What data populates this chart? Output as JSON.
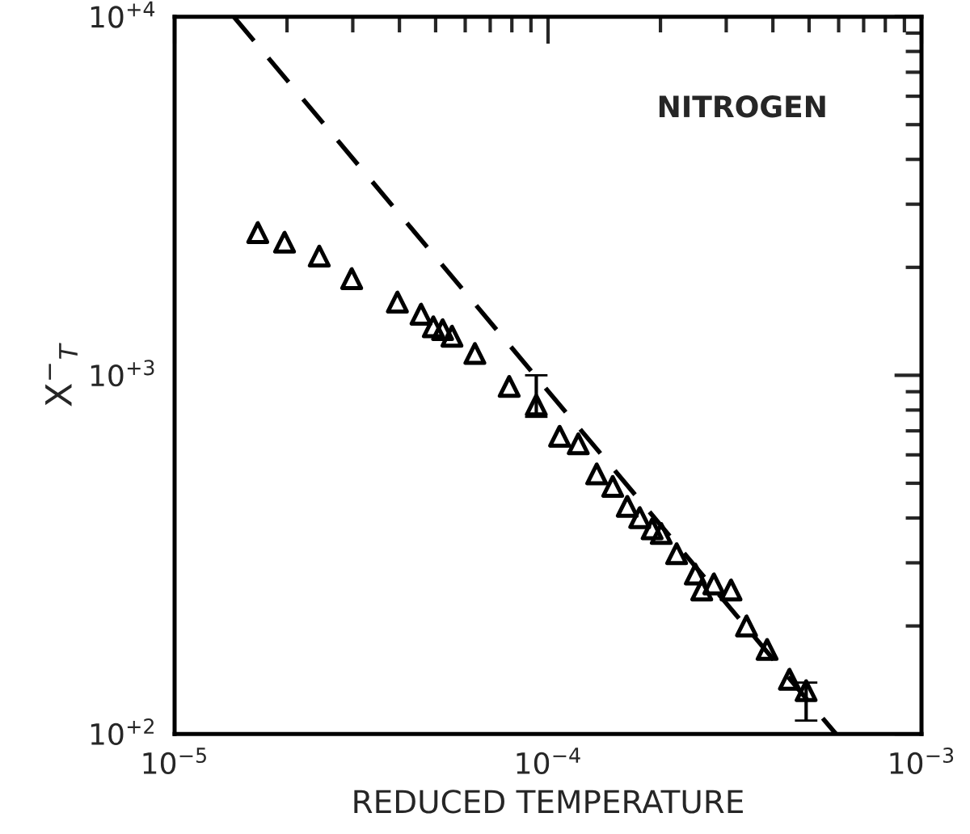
{
  "chart_data": {
    "type": "scatter",
    "xlabel": "REDUCED TEMPERATURE",
    "ylabel": "X$^{−}$$_{T}$",
    "log": "xy",
    "grid": false,
    "xlim": [
      1e-05,
      0.001
    ],
    "ylim": [
      100,
      10000
    ],
    "xticks": [
      {
        "value": 1e-05,
        "label": "10$^{−5}$"
      },
      {
        "value": 0.0001,
        "label": "10$^{−4}$"
      },
      {
        "value": 0.001,
        "label": "10$^{−3}$"
      }
    ],
    "yticks": [
      {
        "value": 100,
        "label": "10$^{+2}$"
      },
      {
        "value": 1000,
        "label": "10$^{+3}$"
      },
      {
        "value": 10000,
        "label": "10$^{+4}$"
      }
    ],
    "annotations": [
      "NITROGEN"
    ],
    "series": [
      {
        "color": "#000000",
        "marker": "triangle",
        "x": [
          1.67e-05,
          1.97e-05,
          2.44e-05,
          2.98e-05,
          3.95e-05,
          4.57e-05,
          4.93e-05,
          5.22e-05,
          5.53e-05,
          6.37e-05,
          7.87e-05,
          9.3e-05,
          0.0001074,
          0.0001205,
          0.000135,
          0.000149,
          0.000163,
          0.000176,
          0.00019,
          0.000201,
          0.000221,
          0.000248,
          0.000258,
          0.000278,
          0.000309,
          0.00034,
          0.000386,
          0.000443,
          0.000491
        ],
        "values": [
          2500,
          2350,
          2150,
          1860,
          1600,
          1480,
          1365,
          1340,
          1285,
          1150,
          931,
          826,
          676,
          644,
          531,
          490,
          431,
          401,
          373,
          362,
          318,
          279,
          252,
          262,
          252,
          200,
          172,
          142,
          132
        ],
        "errors": [
          null,
          null,
          null,
          null,
          null,
          null,
          null,
          null,
          null,
          null,
          null,
          [
            766,
            1000
          ],
          null,
          null,
          null,
          null,
          null,
          null,
          null,
          null,
          null,
          null,
          null,
          null,
          null,
          null,
          null,
          null,
          [
            109,
            139
          ]
        ]
      },
      {
        "type": "line",
        "color": "#000000",
        "line_style": "dashed",
        "marker": "none",
        "x": [
          1.44e-05,
          0.00059
        ],
        "values": [
          10000,
          100
        ]
      }
    ]
  }
}
